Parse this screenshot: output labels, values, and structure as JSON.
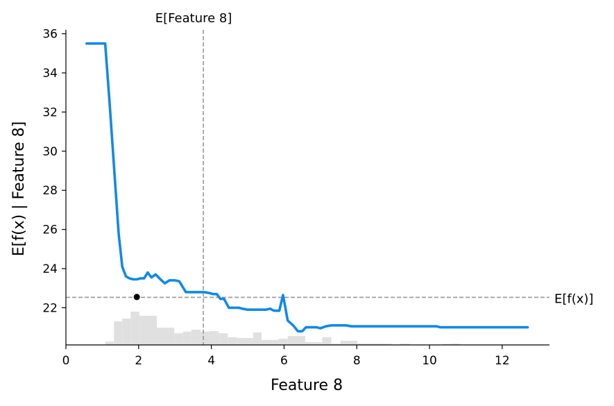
{
  "chart_data": {
    "type": "line",
    "title": "",
    "xlabel": "Feature 8",
    "ylabel": "E[f(x) | Feature 8]",
    "xlim": [
      0,
      13.3
    ],
    "ylim": [
      20.1,
      36.2
    ],
    "x_ticks": [
      0,
      2,
      4,
      6,
      8,
      10,
      12
    ],
    "y_ticks": [
      22,
      24,
      26,
      28,
      30,
      32,
      34,
      36
    ],
    "grid": false,
    "series": [
      {
        "values": [
          [
            0.57,
            35.5
          ],
          [
            1.08,
            35.5
          ],
          [
            1.2,
            32.5
          ],
          [
            1.35,
            28.5
          ],
          [
            1.45,
            25.8
          ],
          [
            1.55,
            24.1
          ],
          [
            1.65,
            23.6
          ],
          [
            1.75,
            23.5
          ],
          [
            1.85,
            23.45
          ],
          [
            1.95,
            23.45
          ],
          [
            2.05,
            23.5
          ],
          [
            2.15,
            23.5
          ],
          [
            2.25,
            23.8
          ],
          [
            2.35,
            23.55
          ],
          [
            2.47,
            23.7
          ],
          [
            2.6,
            23.45
          ],
          [
            2.72,
            23.25
          ],
          [
            2.85,
            23.4
          ],
          [
            3.0,
            23.4
          ],
          [
            3.12,
            23.35
          ],
          [
            3.3,
            22.8
          ],
          [
            3.5,
            22.8
          ],
          [
            3.8,
            22.8
          ],
          [
            3.95,
            22.75
          ],
          [
            4.05,
            22.7
          ],
          [
            4.15,
            22.7
          ],
          [
            4.25,
            22.45
          ],
          [
            4.35,
            22.45
          ],
          [
            4.48,
            22.0
          ],
          [
            4.6,
            22.0
          ],
          [
            4.75,
            22.0
          ],
          [
            4.85,
            21.95
          ],
          [
            5.0,
            21.9
          ],
          [
            5.15,
            21.9
          ],
          [
            5.3,
            21.9
          ],
          [
            5.5,
            21.9
          ],
          [
            5.62,
            21.95
          ],
          [
            5.72,
            21.85
          ],
          [
            5.87,
            21.85
          ],
          [
            5.97,
            22.65
          ],
          [
            6.1,
            21.35
          ],
          [
            6.25,
            21.1
          ],
          [
            6.38,
            20.8
          ],
          [
            6.5,
            20.8
          ],
          [
            6.6,
            21.0
          ],
          [
            6.75,
            21.0
          ],
          [
            6.9,
            21.0
          ],
          [
            7.0,
            20.95
          ],
          [
            7.15,
            21.05
          ],
          [
            7.3,
            21.1
          ],
          [
            7.5,
            21.1
          ],
          [
            7.7,
            21.1
          ],
          [
            7.85,
            21.05
          ],
          [
            8.5,
            21.05
          ],
          [
            9.5,
            21.05
          ],
          [
            10.2,
            21.05
          ],
          [
            10.3,
            21.0
          ],
          [
            12.7,
            21.0
          ]
        ],
        "color": "#1188e8"
      }
    ],
    "expected_value": {
      "label": "E[f(x)]",
      "value": 22.53
    },
    "expected_feature": {
      "label": "E[Feature 8]",
      "value": 3.78
    },
    "highlight_point": {
      "x": 1.95,
      "y": 22.55,
      "color": "#000000"
    },
    "histogram": {
      "color": "#e0e0e0",
      "bins": [
        [
          1.08,
          1.32,
          0.12
        ],
        [
          1.32,
          1.55,
          0.85
        ],
        [
          1.55,
          1.78,
          0.95
        ],
        [
          1.78,
          2.02,
          1.2
        ],
        [
          2.02,
          2.5,
          1.05
        ],
        [
          2.5,
          2.98,
          0.62
        ],
        [
          2.98,
          3.22,
          0.42
        ],
        [
          3.22,
          3.45,
          0.48
        ],
        [
          3.45,
          3.7,
          0.55
        ],
        [
          3.7,
          3.95,
          0.48
        ],
        [
          3.95,
          4.2,
          0.5
        ],
        [
          4.2,
          4.45,
          0.42
        ],
        [
          4.45,
          4.7,
          0.28
        ],
        [
          4.7,
          5.15,
          0.25
        ],
        [
          5.15,
          5.38,
          0.45
        ],
        [
          5.38,
          5.85,
          0.18
        ],
        [
          5.85,
          6.1,
          0.22
        ],
        [
          6.1,
          6.58,
          0.32
        ],
        [
          6.58,
          7.05,
          0.1
        ],
        [
          7.05,
          7.3,
          0.28
        ],
        [
          7.3,
          7.55,
          0.05
        ],
        [
          7.55,
          8.02,
          0.15
        ],
        [
          8.02,
          8.5,
          0.05
        ],
        [
          8.5,
          8.95,
          0.05
        ],
        [
          9.2,
          9.45,
          0.05
        ],
        [
          10.35,
          10.6,
          0.04
        ],
        [
          10.6,
          10.85,
          0.05
        ]
      ]
    }
  }
}
